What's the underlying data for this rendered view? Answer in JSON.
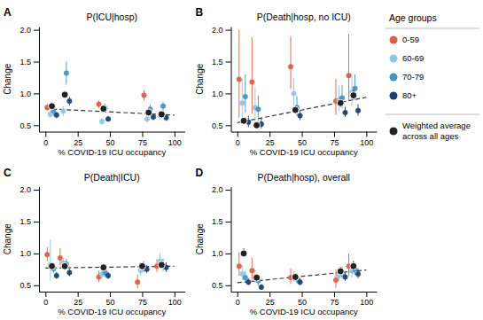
{
  "chart_data": [
    {
      "type": "scatter",
      "title": "P(ICU|hosp)",
      "annotations": [
        "A"
      ],
      "xlabel": "% COVID-19 ICU occupancy",
      "ylabel": "Change",
      "xlim": [
        -5,
        108
      ],
      "ylim": [
        0.4,
        2.05
      ],
      "xticks": [
        0,
        25,
        50,
        75,
        100
      ],
      "yticks": [
        0.5,
        {
          "value": 1.0,
          "label": "1.0"
        },
        1.5,
        {
          "value": 2.0,
          "label": "2.0"
        }
      ],
      "grid": false,
      "legend": "right",
      "legend_title": "Age groups",
      "series": [
        {
          "type": "line",
          "line_style": "dashed",
          "color": "#333333",
          "x": [
            0,
            100
          ],
          "values": [
            0.76,
            0.66
          ]
        },
        {
          "name": "0-59",
          "color": "#d9604a",
          "marker": "circle",
          "x": [
            5,
            45,
            80
          ],
          "values": [
            0.78,
            0.83,
            0.97
          ],
          "yerr_lo": [
            0.05,
            0.06,
            0.08
          ],
          "yerr_hi": [
            0.05,
            0.06,
            0.08
          ]
        },
        {
          "name": "60-69",
          "color": "#92c5de",
          "marker": "circle",
          "x": [
            5,
            15,
            45,
            80,
            90
          ],
          "values": [
            0.67,
            0.72,
            0.56,
            0.6,
            0.65
          ],
          "yerr_lo": [
            0.06,
            0.08,
            0.05,
            0.06,
            0.06
          ],
          "yerr_hi": [
            0.06,
            0.08,
            0.05,
            0.06,
            0.06
          ]
        },
        {
          "name": "70-79",
          "color": "#4393c3",
          "marker": "circle",
          "x": [
            5,
            15,
            45,
            80,
            90
          ],
          "values": [
            0.73,
            1.32,
            0.77,
            0.75,
            0.8
          ],
          "yerr_lo": [
            0.08,
            0.18,
            0.07,
            0.07,
            0.07
          ],
          "yerr_hi": [
            0.08,
            0.18,
            0.07,
            0.07,
            0.07
          ]
        },
        {
          "name": "80+",
          "color": "#1a3f6f",
          "marker": "circle",
          "x": [
            5,
            15,
            45,
            80,
            90
          ],
          "values": [
            0.66,
            0.88,
            0.6,
            0.63,
            0.62
          ],
          "yerr_lo": [
            0.05,
            0.07,
            0.04,
            0.05,
            0.05
          ],
          "yerr_hi": [
            0.05,
            0.07,
            0.04,
            0.05,
            0.05
          ]
        },
        {
          "name": "Weighted average\nacross all ages",
          "color": "#222222",
          "marker": "outlined-circle",
          "x": [
            5,
            15,
            45,
            80,
            90
          ],
          "values": [
            0.8,
            0.98,
            0.76,
            0.7,
            0.67
          ],
          "yerr_lo": [
            0.03,
            0.05,
            0.04,
            0.03,
            0.04
          ],
          "yerr_hi": [
            0.03,
            0.05,
            0.04,
            0.03,
            0.04
          ]
        }
      ]
    },
    {
      "type": "scatter",
      "title": "P(Death|hosp, no ICU)",
      "annotations": [
        "B"
      ],
      "xlabel": "% COVID-19 ICU occupancy",
      "ylabel": "Change",
      "xlim": [
        -5,
        108
      ],
      "ylim": [
        0.4,
        2.05
      ],
      "xticks": [
        0,
        25,
        50,
        75,
        100
      ],
      "yticks": [
        0.5,
        {
          "value": 1.0,
          "label": "1.0"
        },
        1.5,
        {
          "value": 2.0,
          "label": "2.0"
        }
      ],
      "grid": false,
      "series": [
        {
          "type": "line",
          "line_style": "dashed",
          "color": "#333333",
          "x": [
            0,
            100
          ],
          "values": [
            0.54,
            0.94
          ]
        },
        {
          "name": "0-59",
          "color": "#d9604a",
          "marker": "circle",
          "x": [
            5,
            15,
            45,
            80,
            90
          ],
          "values": [
            1.22,
            1.18,
            1.42,
            0.88,
            1.28
          ],
          "yerr_lo": [
            0.6,
            0.5,
            0.35,
            0.22,
            0.4
          ],
          "yerr_hi": [
            0.78,
            0.7,
            0.48,
            0.35,
            0.65
          ]
        },
        {
          "name": "60-69",
          "color": "#92c5de",
          "marker": "circle",
          "x": [
            5,
            15,
            45,
            80,
            90
          ],
          "values": [
            0.85,
            0.78,
            1.0,
            0.9,
            1.02
          ],
          "yerr_lo": [
            0.25,
            0.22,
            0.18,
            0.18,
            0.22
          ],
          "yerr_hi": [
            0.38,
            0.32,
            0.25,
            0.22,
            0.3
          ]
        },
        {
          "name": "70-79",
          "color": "#4393c3",
          "marker": "circle",
          "x": [
            5,
            15,
            45,
            80,
            90
          ],
          "values": [
            0.95,
            0.75,
            0.78,
            0.93,
            1.08
          ],
          "yerr_lo": [
            0.25,
            0.18,
            0.13,
            0.16,
            0.18
          ],
          "yerr_hi": [
            0.35,
            0.22,
            0.18,
            0.2,
            0.22
          ]
        },
        {
          "name": "80+",
          "color": "#1a3f6f",
          "marker": "circle",
          "x": [
            5,
            15,
            45,
            80,
            90
          ],
          "values": [
            0.55,
            0.52,
            0.65,
            0.7,
            0.73
          ],
          "yerr_lo": [
            0.08,
            0.07,
            0.07,
            0.07,
            0.08
          ],
          "yerr_hi": [
            0.1,
            0.09,
            0.08,
            0.09,
            0.1
          ]
        },
        {
          "name": "Weighted average\nacross all ages",
          "color": "#222222",
          "marker": "outlined-circle",
          "x": [
            5,
            15,
            45,
            80,
            90
          ],
          "values": [
            0.57,
            0.5,
            0.74,
            0.85,
            0.97
          ],
          "yerr_lo": [
            0.04,
            0.04,
            0.05,
            0.06,
            0.07
          ],
          "yerr_hi": [
            0.05,
            0.05,
            0.06,
            0.07,
            0.08
          ]
        }
      ]
    },
    {
      "type": "scatter",
      "title": "P(Death|ICU)",
      "annotations": [
        "C"
      ],
      "xlabel": "% COVID-19 ICU occupancy",
      "ylabel": "Change",
      "xlim": [
        -5,
        108
      ],
      "ylim": [
        0.4,
        2.05
      ],
      "xticks": [
        0,
        25,
        50,
        75,
        100
      ],
      "yticks": [
        0.5,
        {
          "value": 1.0,
          "label": "1.0"
        },
        1.5,
        {
          "value": 2.0,
          "label": "2.0"
        }
      ],
      "grid": false,
      "series": [
        {
          "type": "line",
          "line_style": "dashed",
          "color": "#333333",
          "x": [
            0,
            100
          ],
          "values": [
            0.77,
            0.8
          ]
        },
        {
          "name": "0-59",
          "color": "#d9604a",
          "marker": "circle",
          "x": [
            5,
            15,
            45,
            75,
            90
          ],
          "values": [
            0.98,
            0.93,
            0.63,
            0.55,
            0.8
          ],
          "yerr_lo": [
            0.1,
            0.12,
            0.08,
            0.1,
            0.09
          ],
          "yerr_hi": [
            0.12,
            0.15,
            0.1,
            0.12,
            0.11
          ]
        },
        {
          "name": "60-69",
          "color": "#92c5de",
          "marker": "circle",
          "x": [
            5,
            15,
            45,
            75,
            90
          ],
          "values": [
            0.82,
            0.85,
            0.67,
            0.73,
            0.88
          ],
          "yerr_lo": [
            0.25,
            0.07,
            0.07,
            0.08,
            0.1
          ],
          "yerr_hi": [
            0.4,
            0.08,
            0.08,
            0.1,
            0.12
          ]
        },
        {
          "name": "70-79",
          "color": "#4393c3",
          "marker": "circle",
          "x": [
            5,
            15,
            45,
            75,
            90
          ],
          "values": [
            0.76,
            0.83,
            0.7,
            0.79,
            0.82
          ],
          "yerr_lo": [
            0.07,
            0.07,
            0.07,
            0.08,
            0.09
          ],
          "yerr_hi": [
            0.08,
            0.08,
            0.08,
            0.09,
            0.1
          ]
        },
        {
          "name": "80+",
          "color": "#1a3f6f",
          "marker": "circle",
          "x": [
            5,
            15,
            45,
            75,
            90
          ],
          "values": [
            0.65,
            0.7,
            0.65,
            0.75,
            0.78
          ],
          "yerr_lo": [
            0.05,
            0.06,
            0.05,
            0.06,
            0.07
          ],
          "yerr_hi": [
            0.06,
            0.07,
            0.06,
            0.07,
            0.08
          ]
        },
        {
          "name": "Weighted average\nacross all ages",
          "color": "#222222",
          "marker": "outlined-circle",
          "x": [
            5,
            15,
            45,
            75,
            90
          ],
          "values": [
            0.8,
            0.8,
            0.78,
            0.8,
            0.82
          ],
          "yerr_lo": [
            0.03,
            0.03,
            0.03,
            0.03,
            0.04
          ],
          "yerr_hi": [
            0.04,
            0.04,
            0.04,
            0.04,
            0.05
          ]
        }
      ]
    },
    {
      "type": "scatter",
      "title": "P(Death|hosp), overall",
      "annotations": [
        "D"
      ],
      "xlabel": "% COVID-19 ICU occupancy",
      "ylabel": "Change",
      "xlim": [
        -5,
        108
      ],
      "ylim": [
        0.4,
        2.05
      ],
      "xticks": [
        0,
        25,
        50,
        75,
        100
      ],
      "yticks": [
        0.5,
        {
          "value": 1.0,
          "label": "1.0"
        },
        1.5,
        {
          "value": 2.0,
          "label": "2.0"
        }
      ],
      "grid": false,
      "series": [
        {
          "type": "line",
          "line_style": "dashed",
          "color": "#333333",
          "x": [
            0,
            100
          ],
          "values": [
            0.54,
            0.74
          ]
        },
        {
          "name": "0-59",
          "color": "#d9604a",
          "marker": "circle",
          "x": [
            5,
            15,
            45,
            80,
            90
          ],
          "values": [
            0.8,
            0.73,
            0.62,
            0.58,
            0.8
          ],
          "yerr_lo": [
            0.15,
            0.14,
            0.1,
            0.12,
            0.15
          ],
          "yerr_hi": [
            0.22,
            0.2,
            0.14,
            0.17,
            0.2
          ]
        },
        {
          "name": "60-69",
          "color": "#92c5de",
          "marker": "circle",
          "x": [
            5,
            15,
            45,
            80,
            90
          ],
          "values": [
            0.68,
            0.63,
            0.63,
            0.65,
            0.72
          ],
          "yerr_lo": [
            0.1,
            0.09,
            0.07,
            0.08,
            0.1
          ],
          "yerr_hi": [
            0.14,
            0.12,
            0.09,
            0.1,
            0.12
          ]
        },
        {
          "name": "70-79",
          "color": "#4393c3",
          "marker": "circle",
          "x": [
            5,
            15,
            45,
            80,
            90
          ],
          "values": [
            0.62,
            0.57,
            0.6,
            0.7,
            0.75
          ],
          "yerr_lo": [
            0.08,
            0.08,
            0.07,
            0.08,
            0.09
          ],
          "yerr_hi": [
            0.1,
            0.1,
            0.08,
            0.09,
            0.1
          ]
        },
        {
          "name": "80+",
          "color": "#1a3f6f",
          "marker": "circle",
          "x": [
            5,
            15,
            45,
            80,
            90
          ],
          "values": [
            0.55,
            0.47,
            0.55,
            0.63,
            0.68
          ],
          "yerr_lo": [
            0.05,
            0.04,
            0.05,
            0.06,
            0.07
          ],
          "yerr_hi": [
            0.06,
            0.05,
            0.06,
            0.07,
            0.08
          ]
        },
        {
          "name": "Weighted average\nacross all ages",
          "color": "#222222",
          "marker": "outlined-circle",
          "x": [
            5,
            15,
            45,
            80,
            90
          ],
          "values": [
            1.0,
            0.62,
            0.63,
            0.72,
            0.8
          ],
          "yerr_lo": [
            0.06,
            0.05,
            0.05,
            0.06,
            0.07
          ],
          "yerr_hi": [
            0.08,
            0.06,
            0.06,
            0.07,
            0.08
          ]
        }
      ]
    }
  ]
}
